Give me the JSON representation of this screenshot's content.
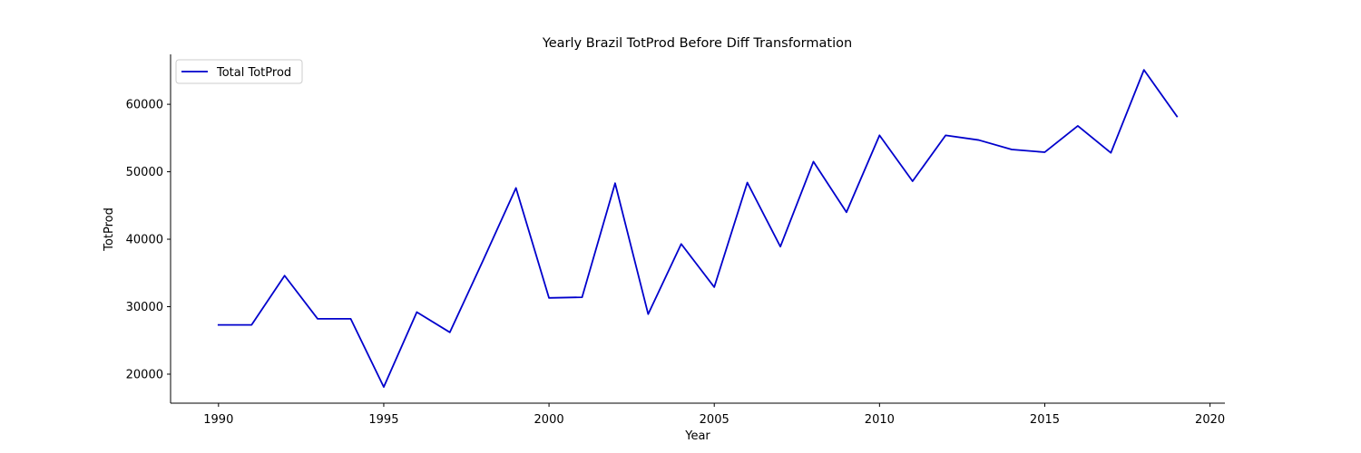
{
  "chart_data": {
    "type": "line",
    "title": "Yearly Brazil TotProd Before Diff Transformation",
    "xlabel": "Year",
    "ylabel": "TotProd",
    "xlim": [
      1988.55,
      2020.45
    ],
    "ylim": [
      15700,
      67400
    ],
    "xticks": [
      1990,
      1995,
      2000,
      2005,
      2010,
      2015,
      2020
    ],
    "yticks": [
      20000,
      30000,
      40000,
      50000,
      60000
    ],
    "grid": false,
    "legend_position": "top-left",
    "series": [
      {
        "name": "Total TotProd",
        "color": "#0000cc",
        "x": [
          1990,
          1991,
          1992,
          1993,
          1994,
          1995,
          1996,
          1997,
          1998,
          1999,
          2000,
          2001,
          2002,
          2003,
          2004,
          2005,
          2006,
          2007,
          2008,
          2009,
          2010,
          2011,
          2012,
          2013,
          2014,
          2015,
          2016,
          2017,
          2018,
          2019
        ],
        "y": [
          27300,
          27300,
          34600,
          28200,
          28200,
          18100,
          29200,
          26200,
          36800,
          47600,
          31300,
          31400,
          48300,
          28900,
          39300,
          32900,
          48400,
          38900,
          51500,
          44000,
          55400,
          48600,
          55400,
          54700,
          53300,
          52900,
          56800,
          52800,
          65100,
          58200
        ]
      }
    ]
  }
}
